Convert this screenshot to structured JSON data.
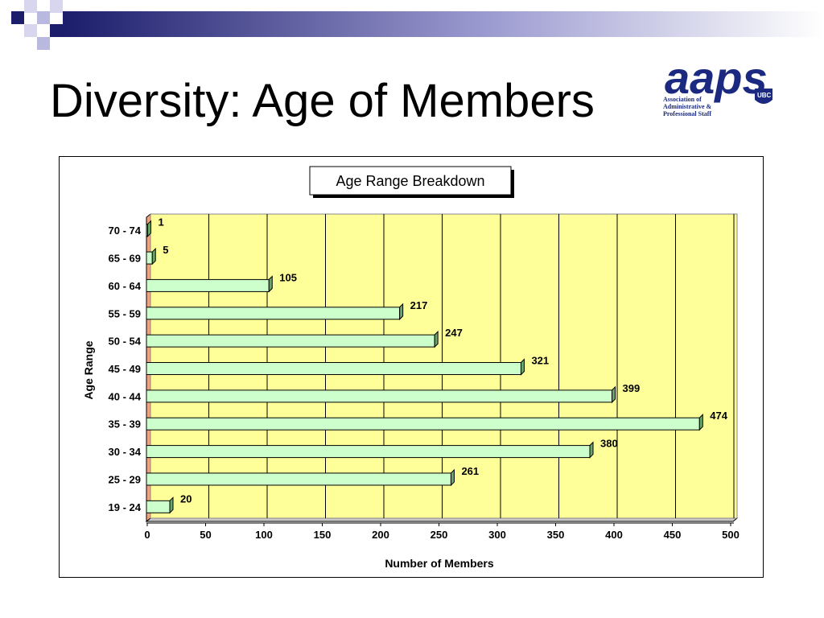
{
  "slide": {
    "title": "Diversity: Age of Members",
    "logo": {
      "wordmark": "aaps",
      "badge": "UBC",
      "tagline": [
        "Association of",
        "Administrative &",
        "Professional Staff"
      ]
    }
  },
  "colors": {
    "bar_fill": "#ccffcc",
    "bar_side": "#6aa66a",
    "plot_background": "#ffff99",
    "side_wall": "#f5a27a",
    "logo_blue": "#1b2a80",
    "deco_navy": "#1c1d6b",
    "deco_light": "#b9b8df"
  },
  "chart_data": {
    "type": "bar",
    "orientation": "horizontal",
    "title": "Age Range Breakdown",
    "xlabel": "Number of Members",
    "ylabel": "Age Range",
    "categories": [
      "19 - 24",
      "25 - 29",
      "30 - 34",
      "35 - 39",
      "40 - 44",
      "45 - 49",
      "50 - 54",
      "55 - 59",
      "60 - 64",
      "65 - 69",
      "70 - 74"
    ],
    "values": [
      20,
      261,
      380,
      474,
      399,
      321,
      247,
      217,
      105,
      5,
      1
    ],
    "xlim": [
      0,
      500
    ],
    "xticks": [
      0,
      50,
      100,
      150,
      200,
      250,
      300,
      350,
      400,
      450,
      500
    ],
    "grid": "vertical",
    "legend": "none",
    "data_labels": true
  }
}
